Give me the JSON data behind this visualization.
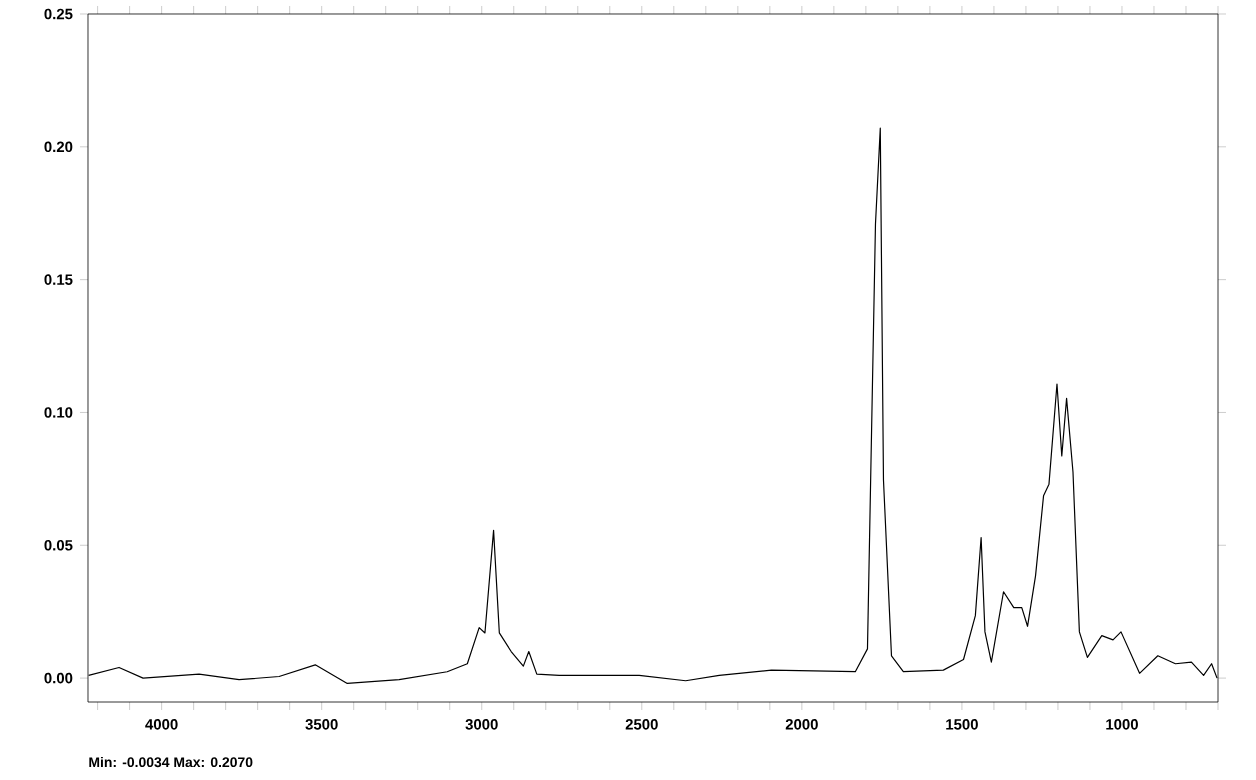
{
  "chart_data": {
    "type": "line",
    "color": "#000000",
    "line_style": "solid",
    "marker": "none",
    "grid": false,
    "x": [
      4228,
      4133,
      4058,
      3883,
      3758,
      3633,
      3520,
      3420,
      3258,
      3108,
      3045,
      3008,
      2990,
      2963,
      2945,
      2908,
      2870,
      2853,
      2828,
      2758,
      2508,
      2363,
      2258,
      2095,
      1833,
      1795,
      1770,
      1755,
      1745,
      1720,
      1683,
      1558,
      1495,
      1458,
      1440,
      1428,
      1408,
      1370,
      1338,
      1313,
      1295,
      1270,
      1245,
      1228,
      1203,
      1188,
      1173,
      1153,
      1133,
      1108,
      1063,
      1028,
      1003,
      945,
      888,
      833,
      783,
      745,
      720,
      703
    ],
    "values": [
      0.001,
      0.004,
      0,
      0.0015,
      -0.0006,
      0.0006,
      0.005,
      -0.002,
      -0.0006,
      0.0024,
      0.0054,
      0.019,
      0.017,
      0.0556,
      0.017,
      0.01,
      0.0045,
      0.01,
      0.0015,
      0.001,
      0.001,
      -0.001,
      0.001,
      0.003,
      0.0024,
      0.011,
      0.171,
      0.207,
      0.0746,
      0.0084,
      0.0024,
      0.003,
      0.007,
      0.0235,
      0.0529,
      0.0174,
      0.006,
      0.0325,
      0.0265,
      0.0265,
      0.0195,
      0.0385,
      0.0686,
      0.073,
      0.1107,
      0.0836,
      0.1053,
      0.0776,
      0.0174,
      0.0078,
      0.016,
      0.0144,
      0.0174,
      0.0018,
      0.0084,
      0.0054,
      0.006,
      0.001,
      0.0054,
      0
    ],
    "xlim": [
      4230,
      700
    ],
    "ylim": [
      -0.009,
      0.25
    ],
    "xticks": [
      {
        "value": 4200,
        "label": null
      },
      {
        "value": 4100,
        "label": null
      },
      4000,
      {
        "value": 3900,
        "label": null
      },
      {
        "value": 3800,
        "label": null
      },
      {
        "value": 3700,
        "label": null
      },
      {
        "value": 3600,
        "label": null
      },
      3500,
      {
        "value": 3400,
        "label": null
      },
      {
        "value": 3300,
        "label": null
      },
      {
        "value": 3200,
        "label": null
      },
      {
        "value": 3100,
        "label": null
      },
      3000,
      {
        "value": 2900,
        "label": null
      },
      {
        "value": 2800,
        "label": null
      },
      {
        "value": 2700,
        "label": null
      },
      {
        "value": 2600,
        "label": null
      },
      2500,
      {
        "value": 2400,
        "label": null
      },
      {
        "value": 2300,
        "label": null
      },
      {
        "value": 2200,
        "label": null
      },
      {
        "value": 2100,
        "label": null
      },
      2000,
      {
        "value": 1900,
        "label": null
      },
      {
        "value": 1800,
        "label": null
      },
      {
        "value": 1700,
        "label": null
      },
      {
        "value": 1600,
        "label": null
      },
      1500,
      {
        "value": 1400,
        "label": null
      },
      {
        "value": 1300,
        "label": null
      },
      {
        "value": 1200,
        "label": null
      },
      {
        "value": 1100,
        "label": null
      },
      1000,
      {
        "value": 900,
        "label": null
      },
      {
        "value": 800,
        "label": null
      },
      {
        "value": 700,
        "label": null
      }
    ],
    "yticks": [
      {
        "value": 0,
        "label": "0.00"
      },
      {
        "value": 0.05,
        "label": "0.05"
      },
      {
        "value": 0.1,
        "label": "0.10"
      },
      {
        "value": 0.15,
        "label": "0.15"
      },
      {
        "value": 0.2,
        "label": "0.20"
      },
      {
        "value": 0.25,
        "label": "0.25"
      }
    ],
    "annotations": [
      "Min: -0.0034  Max: 0.2070"
    ]
  }
}
